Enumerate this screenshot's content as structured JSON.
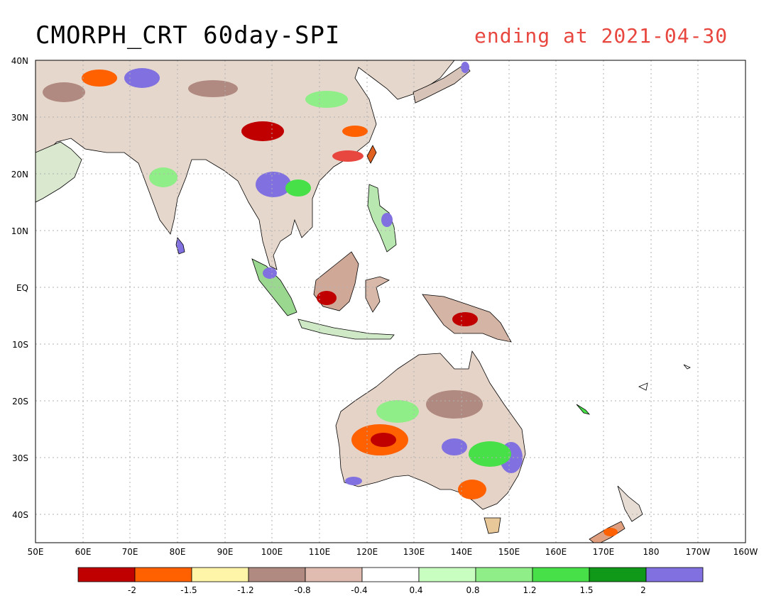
{
  "header": {
    "title": "CMORPH_CRT 60day-SPI",
    "subtitle": "ending at 2021-04-30"
  },
  "map": {
    "lat_labels": [
      "40N",
      "30N",
      "20N",
      "10N",
      "EQ",
      "10S",
      "20S",
      "30S",
      "40S"
    ],
    "lon_labels": [
      "50E",
      "60E",
      "70E",
      "80E",
      "90E",
      "100E",
      "110E",
      "120E",
      "130E",
      "140E",
      "150E",
      "160E",
      "170E",
      "180",
      "170W",
      "160W"
    ]
  },
  "colorbar": {
    "colors": [
      "#c00000",
      "#ff6000",
      "#fff5a8",
      "#b08a80",
      "#e0bcb0",
      "#ffffff",
      "#c8ffc0",
      "#90ee88",
      "#48e048",
      "#109818",
      "#8070e0"
    ],
    "labels": [
      "-2",
      "-1.5",
      "-1.2",
      "-0.8",
      "-0.4",
      "0.4",
      "0.8",
      "1.2",
      "1.5",
      "2"
    ]
  }
}
